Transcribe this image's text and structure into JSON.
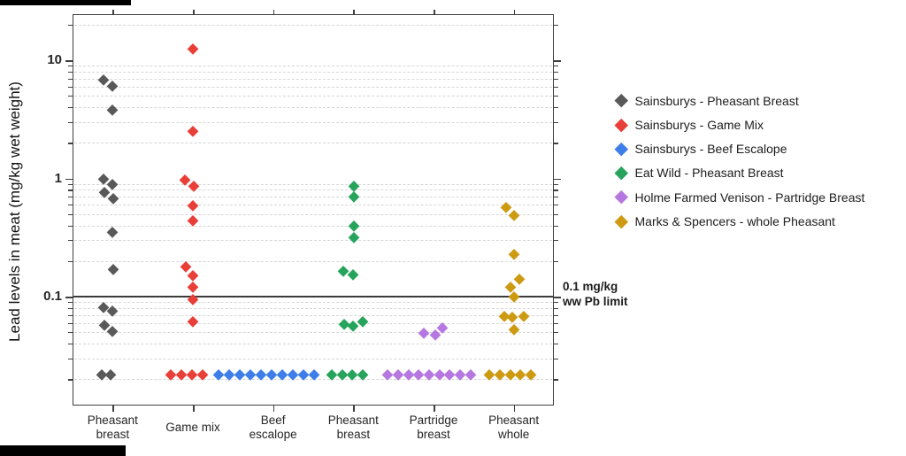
{
  "figure": {
    "y_axis_title": "Lead levels in meat (mg/kg wet weight)"
  },
  "chart_data": {
    "type": "scatter",
    "y_scale": "log",
    "ylabel": "Lead levels in meat (mg/kg wet weight)",
    "xlabel": "",
    "ylim": [
      0.012,
      24.5
    ],
    "grid": "minor-horizontal-dashed",
    "legend_position": "right-outside",
    "y_major_ticks": [
      {
        "value": 10,
        "label": "10"
      },
      {
        "value": 1,
        "label": "1"
      },
      {
        "value": 0.1,
        "label": "0.1"
      }
    ],
    "y_minor_gridlines": [
      20,
      9,
      8,
      7,
      6,
      5,
      4,
      3,
      2,
      0.9,
      0.8,
      0.7,
      0.6,
      0.5,
      0.4,
      0.3,
      0.2,
      0.09,
      0.08,
      0.07,
      0.06,
      0.05,
      0.04,
      0.03,
      0.02
    ],
    "categories": [
      {
        "lines": [
          "Pheasant",
          "breast"
        ]
      },
      {
        "lines": [
          "Game mix"
        ]
      },
      {
        "lines": [
          "Beef",
          "escalope"
        ]
      },
      {
        "lines": [
          "Pheasant",
          "breast"
        ]
      },
      {
        "lines": [
          "Partridge",
          "breast"
        ]
      },
      {
        "lines": [
          "Pheasant",
          "whole"
        ]
      }
    ],
    "reference_line": {
      "value": 0.1,
      "label_line1": "0.1 mg/kg",
      "label_line2": "ww Pb limit"
    },
    "detection_limit_value": 0.022,
    "series": [
      {
        "name": "Sainsburys - Pheasant Breast",
        "color": "#595959",
        "category_index": 0,
        "points": [
          {
            "v": 6.9,
            "dx": -10
          },
          {
            "v": 6.1,
            "dx": 0
          },
          {
            "v": 3.8,
            "dx": 0
          },
          {
            "v": 1.0,
            "dx": -10
          },
          {
            "v": 0.89,
            "dx": 0
          },
          {
            "v": 0.76,
            "dx": -9
          },
          {
            "v": 0.68,
            "dx": 1
          },
          {
            "v": 0.35,
            "dx": 0
          },
          {
            "v": 0.17,
            "dx": 1
          },
          {
            "v": 0.081,
            "dx": -10
          },
          {
            "v": 0.076,
            "dx": 0
          },
          {
            "v": 0.058,
            "dx": -9
          },
          {
            "v": 0.051,
            "dx": 0
          },
          {
            "v": 0.022,
            "dx": -12
          },
          {
            "v": 0.022,
            "dx": -2
          }
        ]
      },
      {
        "name": "Sainsburys - Game Mix",
        "color": "#e83f38",
        "category_index": 1,
        "points": [
          {
            "v": 12.5,
            "dx": 0
          },
          {
            "v": 2.5,
            "dx": 0
          },
          {
            "v": 0.98,
            "dx": -9
          },
          {
            "v": 0.86,
            "dx": 1
          },
          {
            "v": 0.59,
            "dx": 0
          },
          {
            "v": 0.44,
            "dx": 0
          },
          {
            "v": 0.18,
            "dx": -8
          },
          {
            "v": 0.15,
            "dx": 0
          },
          {
            "v": 0.12,
            "dx": 0
          },
          {
            "v": 0.095,
            "dx": 0
          },
          {
            "v": 0.062,
            "dx": 0
          },
          {
            "v": 0.022,
            "dx": -25
          },
          {
            "v": 0.022,
            "dx": -13
          },
          {
            "v": 0.022,
            "dx": -1
          },
          {
            "v": 0.022,
            "dx": 11
          }
        ]
      },
      {
        "name": "Sainsburys - Beef Escalope",
        "color": "#3d7ee8",
        "category_index": 2,
        "points": [
          {
            "v": 0.022,
            "dx": -62
          },
          {
            "v": 0.022,
            "dx": -50
          },
          {
            "v": 0.022,
            "dx": -38
          },
          {
            "v": 0.022,
            "dx": -26
          },
          {
            "v": 0.022,
            "dx": -14
          },
          {
            "v": 0.022,
            "dx": -2
          },
          {
            "v": 0.022,
            "dx": 10
          },
          {
            "v": 0.022,
            "dx": 22
          },
          {
            "v": 0.022,
            "dx": 34
          },
          {
            "v": 0.022,
            "dx": 46
          }
        ]
      },
      {
        "name": "Eat Wild - Pheasant Breast",
        "color": "#27a45c",
        "category_index": 3,
        "points": [
          {
            "v": 0.86,
            "dx": 1
          },
          {
            "v": 0.7,
            "dx": 1
          },
          {
            "v": 0.4,
            "dx": 1
          },
          {
            "v": 0.32,
            "dx": 1
          },
          {
            "v": 0.165,
            "dx": -11
          },
          {
            "v": 0.154,
            "dx": 0
          },
          {
            "v": 0.059,
            "dx": -10
          },
          {
            "v": 0.057,
            "dx": 0
          },
          {
            "v": 0.062,
            "dx": 11
          },
          {
            "v": 0.022,
            "dx": -24
          },
          {
            "v": 0.022,
            "dx": -12
          },
          {
            "v": 0.022,
            "dx": -1
          },
          {
            "v": 0.022,
            "dx": 11
          }
        ]
      },
      {
        "name": "Holme Farmed Venison - Partridge Breast",
        "color": "#b678e0",
        "category_index": 4,
        "points": [
          {
            "v": 0.049,
            "dx": -11
          },
          {
            "v": 0.048,
            "dx": 2
          },
          {
            "v": 0.055,
            "dx": 10
          },
          {
            "v": 0.022,
            "dx": -52
          },
          {
            "v": 0.022,
            "dx": -40
          },
          {
            "v": 0.022,
            "dx": -28
          },
          {
            "v": 0.022,
            "dx": -17
          },
          {
            "v": 0.022,
            "dx": -5
          },
          {
            "v": 0.022,
            "dx": 7
          },
          {
            "v": 0.022,
            "dx": 18
          },
          {
            "v": 0.022,
            "dx": 30
          },
          {
            "v": 0.022,
            "dx": 42
          }
        ]
      },
      {
        "name": "Marks & Spencers - whole Pheasant",
        "color": "#cd9a12",
        "category_index": 5,
        "points": [
          {
            "v": 0.57,
            "dx": -9
          },
          {
            "v": 0.49,
            "dx": 0
          },
          {
            "v": 0.23,
            "dx": 0
          },
          {
            "v": 0.14,
            "dx": 6
          },
          {
            "v": 0.12,
            "dx": -4
          },
          {
            "v": 0.1,
            "dx": 0
          },
          {
            "v": 0.068,
            "dx": -11
          },
          {
            "v": 0.067,
            "dx": -2
          },
          {
            "v": 0.069,
            "dx": 11
          },
          {
            "v": 0.053,
            "dx": 0
          },
          {
            "v": 0.022,
            "dx": -28
          },
          {
            "v": 0.022,
            "dx": -16
          },
          {
            "v": 0.022,
            "dx": -4
          },
          {
            "v": 0.022,
            "dx": 7
          },
          {
            "v": 0.022,
            "dx": 19
          }
        ]
      }
    ]
  }
}
